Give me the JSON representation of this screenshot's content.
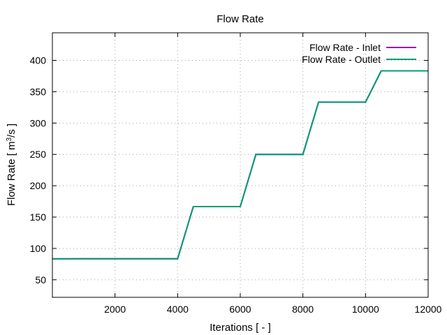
{
  "chart_data": {
    "type": "line",
    "title": "Flow Rate",
    "xlabel": "Iterations [ - ]",
    "ylabel": "Flow Rate [ m",
    "ylabel_sup": "3",
    "ylabel_tail": "/s ]",
    "xlim": [
      0,
      12000
    ],
    "ylim": [
      22,
      444
    ],
    "xticks": [
      2000,
      4000,
      6000,
      8000,
      10000,
      12000
    ],
    "yticks": [
      50,
      100,
      150,
      200,
      250,
      300,
      350,
      400
    ],
    "grid": true,
    "legend_position": "top-right",
    "series": [
      {
        "name": "Flow Rate - Inlet",
        "color": "#9400d3",
        "x": [
          0,
          1500,
          4000,
          4500,
          6000,
          6500,
          8000,
          8500,
          10000,
          10500,
          12000
        ],
        "y": [
          83.3,
          83.6,
          83.6,
          166.7,
          166.7,
          250,
          250,
          333.3,
          333.3,
          383.3,
          383.3
        ]
      },
      {
        "name": "Flow Rate - Outlet",
        "color": "#009e73",
        "x": [
          0,
          1500,
          4000,
          4500,
          6000,
          6500,
          8000,
          8500,
          10000,
          10500,
          12000
        ],
        "y": [
          83.3,
          83.6,
          83.6,
          166.7,
          166.7,
          250,
          250,
          333.3,
          333.3,
          383.3,
          383.3
        ]
      }
    ]
  }
}
